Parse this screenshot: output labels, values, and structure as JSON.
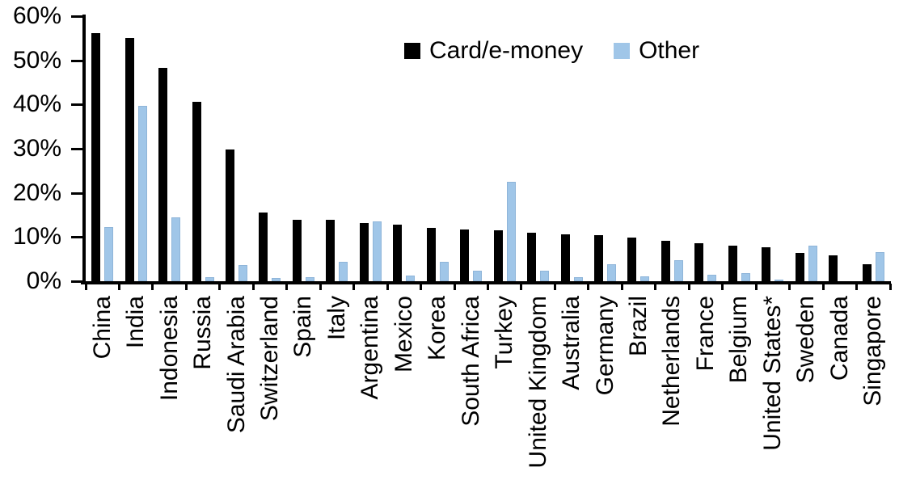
{
  "chart_data": {
    "type": "bar",
    "title": "",
    "xlabel": "",
    "ylabel": "",
    "ylim": [
      0,
      60
    ],
    "ytick_step": 10,
    "ytick_labels": [
      "0%",
      "10%",
      "20%",
      "30%",
      "40%",
      "50%",
      "60%"
    ],
    "grid": false,
    "legend_position": "top-center",
    "background_color": "#FFFFFF",
    "axis_color": "#000000",
    "categories": [
      "China",
      "India",
      "Indonesia",
      "Russia",
      "Saudi Arabia",
      "Switzerland",
      "Spain",
      "Italy",
      "Argentina",
      "Mexico",
      "Korea",
      "South Africa",
      "Turkey",
      "United Kingdom",
      "Australia",
      "Germany",
      "Brazil",
      "Netherlands",
      "France",
      "Belgium",
      "United States*",
      "Sweden",
      "Canada",
      "Singapore"
    ],
    "series": [
      {
        "name": "Card/e-money",
        "color": "#000000",
        "values": [
          56.2,
          55.0,
          48.3,
          40.6,
          29.8,
          15.6,
          14.0,
          13.9,
          13.2,
          12.8,
          12.1,
          11.7,
          11.5,
          11.0,
          10.7,
          10.5,
          9.8,
          9.2,
          8.6,
          8.0,
          7.7,
          6.5,
          5.9,
          3.8
        ]
      },
      {
        "name": "Other",
        "color": "#A0C6E8",
        "border_color": "#8FB5D9",
        "values": [
          12.2,
          39.7,
          14.4,
          0.9,
          3.7,
          0.7,
          0.9,
          4.4,
          13.6,
          1.2,
          4.4,
          2.3,
          22.5,
          2.3,
          0.9,
          3.9,
          1.1,
          4.7,
          1.4,
          1.9,
          0.2,
          8.1,
          0.0,
          6.6
        ]
      }
    ]
  }
}
